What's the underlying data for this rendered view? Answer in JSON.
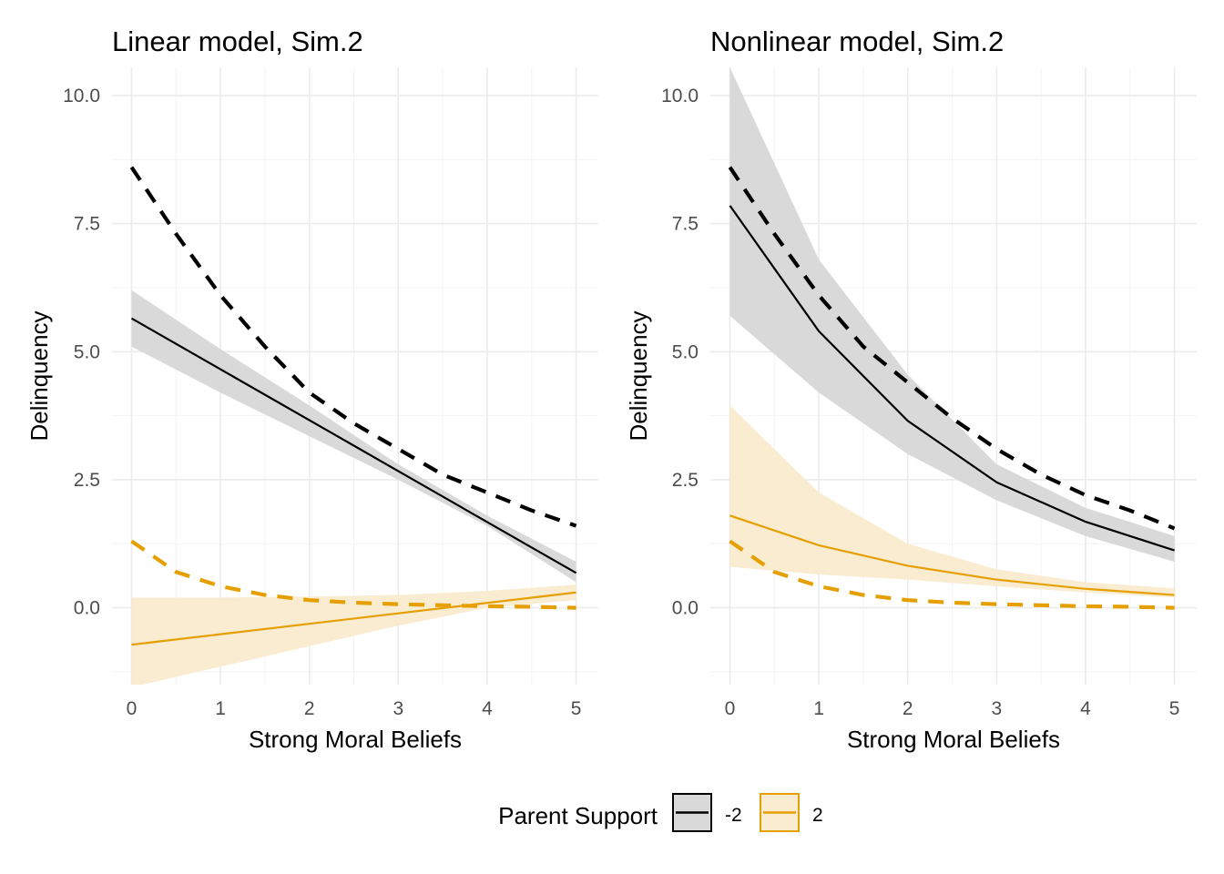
{
  "chart_data": [
    {
      "type": "line",
      "title": "Linear model, Sim.2",
      "xlabel": "Strong Moral Beliefs",
      "ylabel": "Delinquency",
      "xlim": [
        -0.22,
        5.25
      ],
      "ylim": [
        -1.5,
        10.55
      ],
      "x_ticks": [
        0,
        1,
        2,
        3,
        4,
        5
      ],
      "y_ticks": [
        0.0,
        2.5,
        5.0,
        7.5,
        10.0
      ],
      "x_tick_labels": [
        "0",
        "1",
        "2",
        "3",
        "4",
        "5"
      ],
      "y_tick_labels": [
        "0.0",
        "2.5",
        "5.0",
        "7.5",
        "10.0"
      ],
      "grid": true,
      "series": [
        {
          "name": "-2",
          "color": "#000000",
          "style": "solid",
          "kind": "fit",
          "x": [
            0,
            5
          ],
          "y": [
            5.65,
            0.68
          ],
          "ribbon_x": [
            0,
            1,
            2,
            3,
            4,
            5
          ],
          "ribbon_lower": [
            5.1,
            4.2,
            3.35,
            2.5,
            1.6,
            0.5
          ],
          "ribbon_upper": [
            6.2,
            5.05,
            3.95,
            2.8,
            1.8,
            0.9
          ],
          "ribbon_fill": "#d9d9d9"
        },
        {
          "name": "2",
          "color": "#e69f00",
          "style": "solid",
          "kind": "fit",
          "x": [
            0,
            5
          ],
          "y": [
            -0.72,
            0.3
          ],
          "ribbon_x": [
            0,
            1,
            2,
            3,
            4,
            5
          ],
          "ribbon_lower": [
            -1.55,
            -1.15,
            -0.75,
            -0.35,
            0.0,
            0.15
          ],
          "ribbon_upper": [
            0.2,
            0.2,
            0.22,
            0.25,
            0.33,
            0.45
          ],
          "ribbon_fill": "#f9ecd0"
        },
        {
          "name": "-2",
          "color": "#000000",
          "style": "dashed",
          "kind": "true",
          "x": [
            0,
            0.5,
            1,
            1.5,
            2,
            2.5,
            3,
            3.5,
            4,
            4.5,
            5
          ],
          "y": [
            8.6,
            7.3,
            6.1,
            5.1,
            4.2,
            3.6,
            3.1,
            2.6,
            2.25,
            1.9,
            1.6
          ]
        },
        {
          "name": "2",
          "color": "#e69f00",
          "style": "dashed",
          "kind": "true",
          "x": [
            0,
            0.5,
            1,
            1.5,
            2,
            2.5,
            3,
            3.5,
            4,
            4.5,
            5
          ],
          "y": [
            1.3,
            0.7,
            0.42,
            0.25,
            0.15,
            0.1,
            0.07,
            0.05,
            0.03,
            0.02,
            0.0
          ]
        }
      ]
    },
    {
      "type": "line",
      "title": "Nonlinear model, Sim.2",
      "xlabel": "Strong Moral Beliefs",
      "ylabel": "Delinquency",
      "xlim": [
        -0.22,
        5.25
      ],
      "ylim": [
        -1.5,
        10.55
      ],
      "x_ticks": [
        0,
        1,
        2,
        3,
        4,
        5
      ],
      "y_ticks": [
        0.0,
        2.5,
        5.0,
        7.5,
        10.0
      ],
      "x_tick_labels": [
        "0",
        "1",
        "2",
        "3",
        "4",
        "5"
      ],
      "y_tick_labels": [
        "0.0",
        "2.5",
        "5.0",
        "7.5",
        "10.0"
      ],
      "grid": true,
      "series": [
        {
          "name": "-2",
          "color": "#000000",
          "style": "solid",
          "kind": "fit",
          "x": [
            0,
            1,
            2,
            3,
            4,
            5
          ],
          "y": [
            7.85,
            5.4,
            3.65,
            2.45,
            1.68,
            1.12
          ],
          "ribbon_x": [
            0,
            1,
            2,
            3,
            4,
            5
          ],
          "ribbon_lower": [
            5.7,
            4.2,
            3.0,
            2.1,
            1.4,
            0.9
          ],
          "ribbon_upper": [
            10.55,
            6.8,
            4.55,
            2.8,
            1.95,
            1.4
          ],
          "ribbon_fill": "#d9d9d9"
        },
        {
          "name": "2",
          "color": "#e69f00",
          "style": "solid",
          "kind": "fit",
          "x": [
            0,
            1,
            2,
            3,
            4,
            5
          ],
          "y": [
            1.8,
            1.22,
            0.82,
            0.55,
            0.37,
            0.25
          ],
          "ribbon_x": [
            0,
            1,
            2,
            3,
            4,
            5
          ],
          "ribbon_lower": [
            0.8,
            0.65,
            0.55,
            0.42,
            0.3,
            0.2
          ],
          "ribbon_upper": [
            3.95,
            2.25,
            1.25,
            0.75,
            0.5,
            0.38
          ],
          "ribbon_fill": "#f9ecd0"
        },
        {
          "name": "-2",
          "color": "#000000",
          "style": "dashed",
          "kind": "true",
          "x": [
            0,
            0.5,
            1,
            1.5,
            2,
            2.5,
            3,
            3.5,
            4,
            4.5,
            5
          ],
          "y": [
            8.6,
            7.3,
            6.1,
            5.1,
            4.4,
            3.7,
            3.1,
            2.6,
            2.2,
            1.9,
            1.55
          ]
        },
        {
          "name": "2",
          "color": "#e69f00",
          "style": "dashed",
          "kind": "true",
          "x": [
            0,
            0.5,
            1,
            1.5,
            2,
            2.5,
            3,
            3.5,
            4,
            4.5,
            5
          ],
          "y": [
            1.3,
            0.7,
            0.42,
            0.25,
            0.15,
            0.1,
            0.07,
            0.05,
            0.03,
            0.02,
            0.0
          ]
        }
      ]
    }
  ],
  "legend": {
    "title": "Parent Support",
    "position": "bottom",
    "items": [
      {
        "label": "-2",
        "color": "#000000",
        "fill": "#d9d9d9"
      },
      {
        "label": "2",
        "color": "#e69f00",
        "fill": "#f9ecd0"
      }
    ]
  }
}
